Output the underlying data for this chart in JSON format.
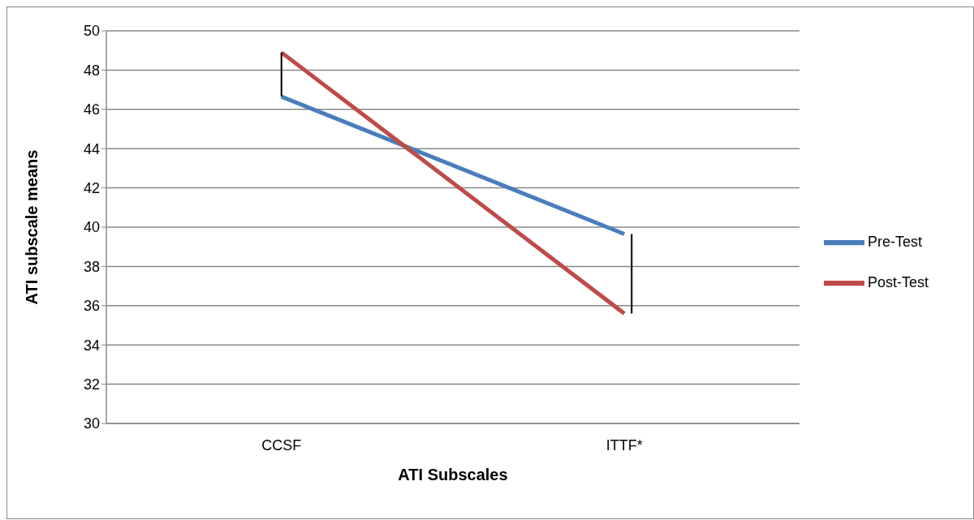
{
  "chart_data": {
    "type": "line",
    "xlabel": "ATI Subscales",
    "ylabel": "ATI subscale means",
    "categories": [
      "CCSF",
      "ITTF*"
    ],
    "series": [
      {
        "name": "Pre-Test",
        "color": "#4a7ebb",
        "values": [
          46.65,
          39.65
        ]
      },
      {
        "name": "Post-Test",
        "color": "#be4b48",
        "values": [
          48.9,
          35.6
        ]
      }
    ],
    "ylim": [
      30,
      50
    ],
    "yticks": [
      30,
      32,
      34,
      36,
      38,
      40,
      42,
      44,
      46,
      48,
      50
    ],
    "grid": "y",
    "legend": "right",
    "marker": "none",
    "line_style": "solid"
  }
}
